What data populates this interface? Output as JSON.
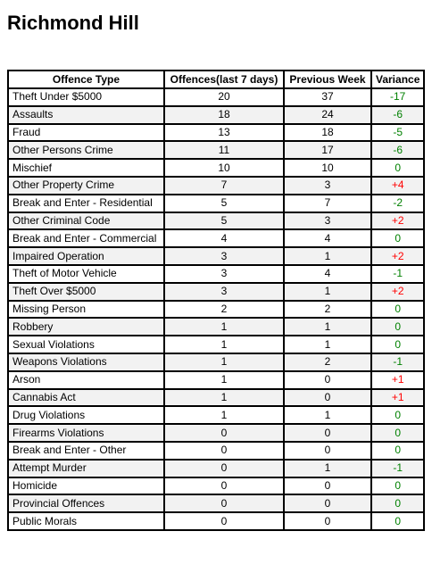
{
  "page": {
    "title": "Richmond Hill"
  },
  "table": {
    "headers": [
      "Offence Type",
      "Offences(last 7 days)",
      "Previous Week",
      "Variance"
    ],
    "rows": [
      {
        "type": "Theft Under $5000",
        "last7": "20",
        "prev": "37",
        "variance": "-17"
      },
      {
        "type": "Assaults",
        "last7": "18",
        "prev": "24",
        "variance": "-6"
      },
      {
        "type": "Fraud",
        "last7": "13",
        "prev": "18",
        "variance": "-5"
      },
      {
        "type": "Other Persons Crime",
        "last7": "11",
        "prev": "17",
        "variance": "-6"
      },
      {
        "type": "Mischief",
        "last7": "10",
        "prev": "10",
        "variance": "0"
      },
      {
        "type": "Other Property Crime",
        "last7": "7",
        "prev": "3",
        "variance": "+4"
      },
      {
        "type": "Break and Enter - Residential",
        "last7": "5",
        "prev": "7",
        "variance": "-2"
      },
      {
        "type": "Other Criminal Code",
        "last7": "5",
        "prev": "3",
        "variance": "+2"
      },
      {
        "type": "Break and Enter - Commercial",
        "last7": "4",
        "prev": "4",
        "variance": "0"
      },
      {
        "type": "Impaired Operation",
        "last7": "3",
        "prev": "1",
        "variance": "+2"
      },
      {
        "type": "Theft of Motor Vehicle",
        "last7": "3",
        "prev": "4",
        "variance": "-1"
      },
      {
        "type": "Theft Over $5000",
        "last7": "3",
        "prev": "1",
        "variance": "+2"
      },
      {
        "type": "Missing Person",
        "last7": "2",
        "prev": "2",
        "variance": "0"
      },
      {
        "type": "Robbery",
        "last7": "1",
        "prev": "1",
        "variance": "0"
      },
      {
        "type": "Sexual Violations",
        "last7": "1",
        "prev": "1",
        "variance": "0"
      },
      {
        "type": "Weapons Violations",
        "last7": "1",
        "prev": "2",
        "variance": "-1"
      },
      {
        "type": "Arson",
        "last7": "1",
        "prev": "0",
        "variance": "+1"
      },
      {
        "type": "Cannabis Act",
        "last7": "1",
        "prev": "0",
        "variance": "+1"
      },
      {
        "type": "Drug Violations",
        "last7": "1",
        "prev": "1",
        "variance": "0"
      },
      {
        "type": "Firearms Violations",
        "last7": "0",
        "prev": "0",
        "variance": "0"
      },
      {
        "type": "Break and Enter - Other",
        "last7": "0",
        "prev": "0",
        "variance": "0"
      },
      {
        "type": "Attempt Murder",
        "last7": "0",
        "prev": "1",
        "variance": "-1"
      },
      {
        "type": "Homicide",
        "last7": "0",
        "prev": "0",
        "variance": "0"
      },
      {
        "type": "Provincial Offences",
        "last7": "0",
        "prev": "0",
        "variance": "0"
      },
      {
        "type": "Public Morals",
        "last7": "0",
        "prev": "0",
        "variance": "0"
      }
    ]
  },
  "colors": {
    "decrease_or_zero": "#008000",
    "increase": "#ff0000",
    "row_stripe": "#f2f2f2"
  }
}
